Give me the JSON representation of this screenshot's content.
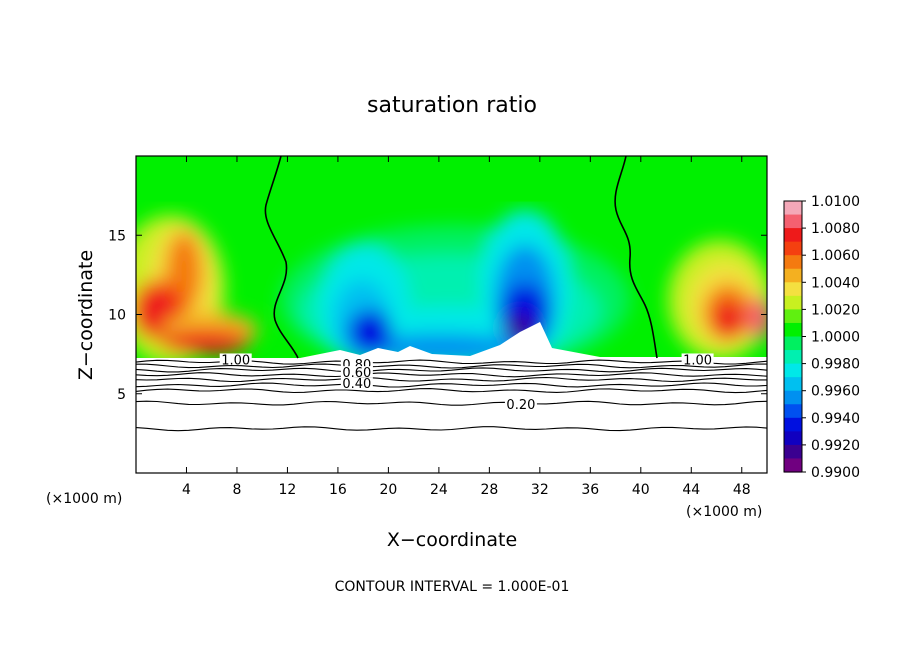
{
  "chart_data": {
    "type": "heatmap",
    "title": "saturation ratio",
    "xlabel": "X−coordinate",
    "ylabel": "Z−coordinate",
    "x_unit": "(×1000 m)",
    "xlim": [
      0,
      50
    ],
    "ylim": [
      0,
      20
    ],
    "x_ticks": [
      4,
      8,
      12,
      16,
      20,
      24,
      28,
      32,
      36,
      40,
      44,
      48
    ],
    "y_ticks": [
      5,
      10,
      15
    ],
    "colorbar": {
      "min": 0.99,
      "max": 1.01,
      "labels": [
        "1.0100",
        "1.0080",
        "1.0060",
        "1.0040",
        "1.0020",
        "1.0000",
        "0.9980",
        "0.9960",
        "0.9940",
        "0.9920",
        "0.9900"
      ],
      "colors": [
        "#f4a8b8",
        "#f46070",
        "#ee1a1a",
        "#f44010",
        "#f47a10",
        "#f4b020",
        "#f4e040",
        "#c8f020",
        "#60f010",
        "#00f000",
        "#00f060",
        "#00f0b0",
        "#00e8e8",
        "#00c0f0",
        "#0090f0",
        "#0050f0",
        "#0010e0",
        "#1000c0",
        "#3a0090",
        "#700080"
      ]
    },
    "cloud_base_z": 7.2,
    "contour_interval": "CONTOUR INTERVAL = 1.000E-01",
    "contour_labels": [
      {
        "text": "1.00",
        "x": 7.9,
        "z": 7.1
      },
      {
        "text": "1.00",
        "x": 44.5,
        "z": 7.1
      },
      {
        "text": "0.80",
        "x": 17.5,
        "z": 6.8
      },
      {
        "text": "0.60",
        "x": 17.5,
        "z": 6.3
      },
      {
        "text": "0.40",
        "x": 17.5,
        "z": 5.6
      },
      {
        "text": "0.20",
        "x": 30.5,
        "z": 4.3
      }
    ],
    "contour_z_levels": [
      7.0,
      6.75,
      6.5,
      6.2,
      5.9,
      5.55,
      5.2,
      4.4,
      2.8
    ]
  }
}
